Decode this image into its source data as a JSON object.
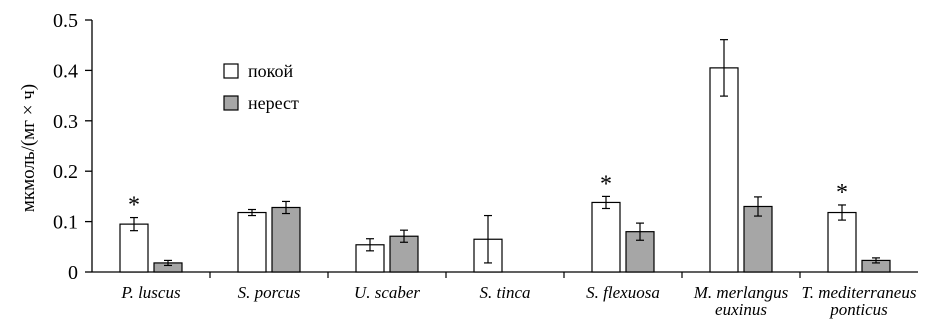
{
  "chart_data": {
    "type": "bar",
    "title": "",
    "ylabel": "мкмоль/(мг × ч)",
    "ylim": [
      0,
      0.5
    ],
    "yticks": [
      "0",
      "0.1",
      "0.2",
      "0.3",
      "0.4",
      "0.5"
    ],
    "categories": [
      [
        "P. luscus"
      ],
      [
        "S. porcus"
      ],
      [
        "U. scaber"
      ],
      [
        "S. tinca"
      ],
      [
        "S. flexuosa"
      ],
      [
        "M. merlangus",
        "euxinus"
      ],
      [
        "T. mediterraneus",
        "ponticus"
      ]
    ],
    "series": [
      {
        "name": "покой",
        "color": "#ffffff",
        "values": [
          0.095,
          0.118,
          0.054,
          0.065,
          0.138,
          0.405,
          0.118
        ],
        "errors": [
          0.013,
          0.006,
          0.012,
          0.047,
          0.012,
          0.056,
          0.015
        ]
      },
      {
        "name": "нерест",
        "color": "#a6a6a6",
        "values": [
          0.018,
          0.128,
          0.071,
          null,
          0.08,
          0.13,
          0.023
        ],
        "errors": [
          0.005,
          0.012,
          0.012,
          null,
          0.017,
          0.019,
          0.005
        ]
      }
    ],
    "annotations": [
      {
        "category_index": 0,
        "text": "*"
      },
      {
        "category_index": 4,
        "text": "*"
      },
      {
        "category_index": 6,
        "text": "*"
      }
    ],
    "legend_position": "top-left",
    "grid": false
  }
}
